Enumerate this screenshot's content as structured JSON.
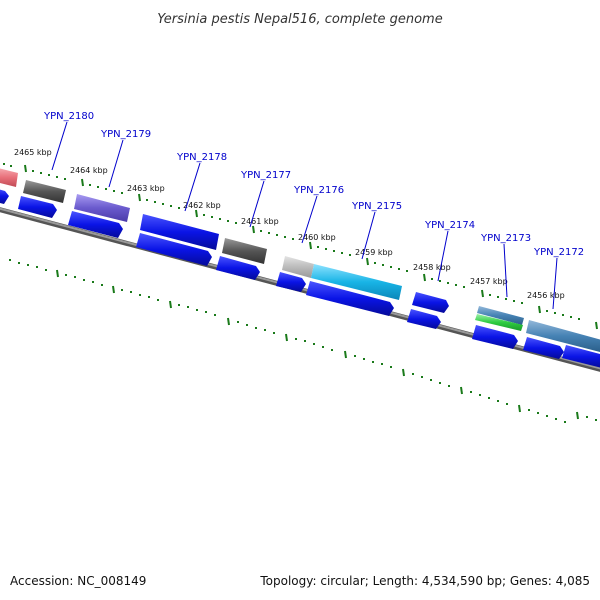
{
  "title": "Yersinia pestis Nepal516, complete genome",
  "footer": {
    "accession": "Accession: NC_008149",
    "summary": "Topology: circular; Length: 4,534,590 bp; Genes: 4,085"
  },
  "colors": {
    "gene_blue": "#0a14e6",
    "tick_green": "#1a7a1a",
    "backbone": "#888888",
    "label_blue": "#0000cc"
  },
  "kbp_labels": [
    "2465 kbp",
    "2464 kbp",
    "2463 kbp",
    "2462 kbp",
    "2461 kbp",
    "2460 kbp",
    "2459 kbp",
    "2458 kbp",
    "2457 kbp",
    "2456 kbp"
  ],
  "genes": [
    {
      "name": "YPN_2180"
    },
    {
      "name": "YPN_2179"
    },
    {
      "name": "YPN_2178"
    },
    {
      "name": "YPN_2177"
    },
    {
      "name": "YPN_2176"
    },
    {
      "name": "YPN_2175"
    },
    {
      "name": "YPN_2174"
    },
    {
      "name": "YPN_2173"
    },
    {
      "name": "YPN_2172"
    }
  ],
  "feature_colors": [
    "#e8707a",
    "#555555",
    "#6a5acd",
    "#6a5acd",
    "#777777",
    "#bbbbbb",
    "#18b4e6",
    "#4682b4",
    "#2ecc40",
    "#4682b4"
  ]
}
